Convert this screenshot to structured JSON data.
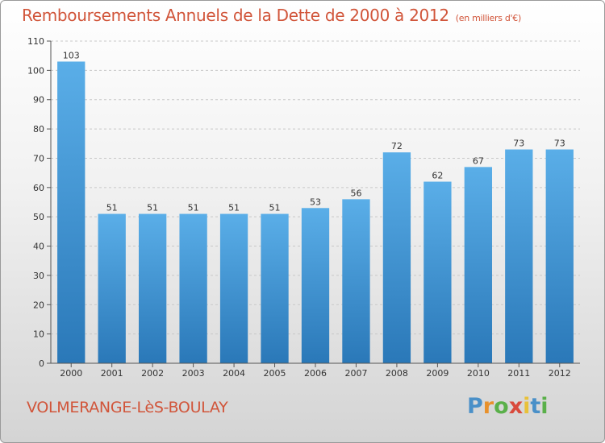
{
  "chart_data": {
    "type": "bar",
    "title": "Remboursements Annuels de la Dette de 2000 à 2012",
    "unit_note": "(en milliers d'€)",
    "categories": [
      "2000",
      "2001",
      "2002",
      "2003",
      "2004",
      "2005",
      "2006",
      "2007",
      "2008",
      "2009",
      "2010",
      "2011",
      "2012"
    ],
    "values": [
      103,
      51,
      51,
      51,
      51,
      51,
      53,
      56,
      72,
      62,
      67,
      73,
      73
    ],
    "ylim": [
      0,
      110
    ],
    "yticks": [
      0,
      10,
      20,
      30,
      40,
      50,
      60,
      70,
      80,
      90,
      100,
      110
    ],
    "grid": true,
    "bar_color_top": "#5aaee8",
    "bar_color_bottom": "#2a78b8"
  },
  "footer": {
    "commune": "VOLMERANGE-LèS-BOULAY",
    "logo_letters": [
      "P",
      "r",
      "o",
      "x",
      "i",
      "t",
      "i"
    ],
    "logo_colors": [
      "#4a90c8",
      "#e8912c",
      "#5ab04a",
      "#d94a3c",
      "#e8c13a",
      "#4a90c8",
      "#5ab04a"
    ]
  },
  "colors": {
    "title": "#d1553a",
    "grid": "#c8c8c8",
    "axis": "#555555"
  }
}
